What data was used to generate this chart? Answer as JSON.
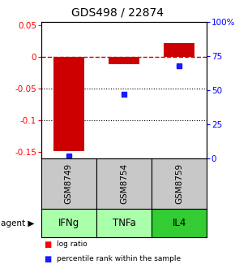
{
  "title": "GDS498 / 22874",
  "samples": [
    "GSM8749",
    "GSM8754",
    "GSM8759"
  ],
  "agents": [
    "IFNg",
    "TNFa",
    "IL4"
  ],
  "log_ratios": [
    -0.148,
    -0.012,
    0.022
  ],
  "percentile_ranks": [
    2.0,
    47.0,
    68.0
  ],
  "ylim": [
    -0.16,
    0.055
  ],
  "left_ticks": [
    0.05,
    0.0,
    -0.05,
    -0.1,
    -0.15
  ],
  "left_tick_labels": [
    "0.05",
    "0",
    "-0.05",
    "-0.1",
    "-0.15"
  ],
  "right_ticks_pct": [
    100,
    75,
    50,
    25,
    0
  ],
  "right_tick_labels": [
    "100%",
    "75",
    "50",
    "25",
    "0"
  ],
  "bar_color": "#cc0000",
  "dot_color": "#1a1aff",
  "zero_line_color": "#cc0000",
  "dot_grid_color": "#000000",
  "sample_bg": "#c8c8c8",
  "agent_colors": [
    "#aaffaa",
    "#aaffaa",
    "#33cc33"
  ],
  "bar_width": 0.55,
  "title_fontsize": 10,
  "tick_fontsize": 7.5,
  "annotation_fontsize": 7,
  "sample_fontsize": 7.5,
  "agent_fontsize": 8.5
}
